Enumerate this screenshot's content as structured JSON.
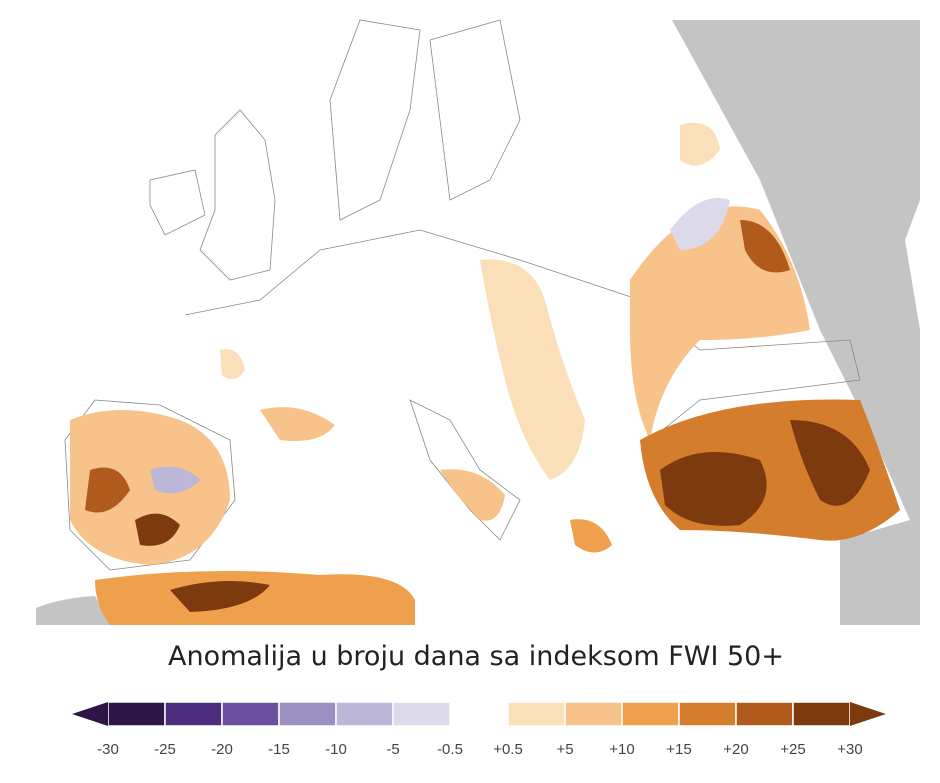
{
  "legend": {
    "title": "Anomalija u broju dana sa indeksom FWI 50+",
    "negative": {
      "colors": [
        "#2d1646",
        "#4b2c7d",
        "#6c4f9e",
        "#9a8fc0",
        "#bcb6d9",
        "#dcdaea"
      ],
      "labels": [
        "-30",
        "-25",
        "-20",
        "-15",
        "-10",
        "-5",
        "-0.5"
      ]
    },
    "positive": {
      "colors": [
        "#fbdfb8",
        "#f7c38a",
        "#eea04c",
        "#d47e2d",
        "#b05a1c",
        "#7d3a0f"
      ],
      "labels": [
        "+0.5",
        "+5",
        "+10",
        "+15",
        "+20",
        "+25",
        "+30"
      ]
    }
  }
}
